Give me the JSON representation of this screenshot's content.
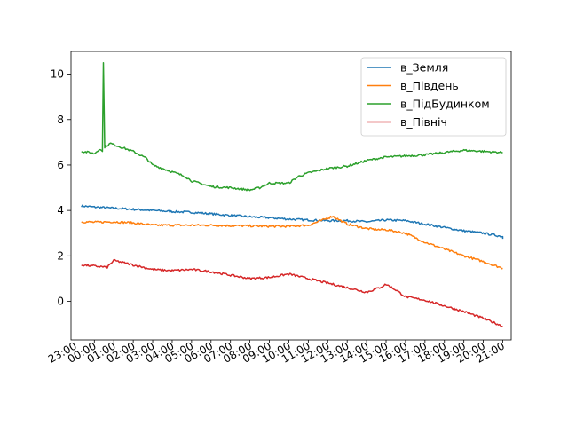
{
  "chart_data": {
    "type": "line",
    "title": "",
    "xlabel": "",
    "ylabel": "",
    "x_ticks": [
      "23:00",
      "00:00",
      "01:00",
      "02:00",
      "03:00",
      "04:00",
      "05:00",
      "06:00",
      "07:00",
      "08:00",
      "09:00",
      "10:00",
      "11:00",
      "12:00",
      "13:00",
      "14:00",
      "15:00",
      "16:00",
      "17:00",
      "18:00",
      "19:00",
      "20:00",
      "21:00"
    ],
    "y_ticks": [
      0,
      2,
      4,
      6,
      8,
      10
    ],
    "xlim": [
      "22:48",
      "21:26"
    ],
    "ylim": [
      -1.7,
      11.0
    ],
    "grid": false,
    "legend_position": "upper-right",
    "series": [
      {
        "name": "в_Земля",
        "color": "#1f77b4",
        "x": [
          "23:20",
          "00:00",
          "01:00",
          "02:00",
          "03:00",
          "04:00",
          "05:00",
          "06:00",
          "07:00",
          "08:00",
          "09:00",
          "10:00",
          "11:00",
          "12:00",
          "13:00",
          "14:00",
          "15:00",
          "16:00",
          "17:00",
          "18:00",
          "19:00",
          "20:00",
          "21:00",
          "21:00"
        ],
        "y": [
          4.2,
          4.15,
          4.1,
          4.05,
          4.0,
          3.95,
          3.92,
          3.85,
          3.78,
          3.72,
          3.68,
          3.62,
          3.58,
          3.55,
          3.55,
          3.5,
          3.58,
          3.55,
          3.4,
          3.25,
          3.1,
          3.0,
          2.85,
          2.75
        ]
      },
      {
        "name": "в_Південь",
        "color": "#ff7f0e",
        "x": [
          "23:20",
          "00:00",
          "01:00",
          "02:00",
          "03:00",
          "04:00",
          "05:00",
          "06:00",
          "07:00",
          "08:00",
          "09:00",
          "10:00",
          "11:00",
          "11:40",
          "12:15",
          "12:40",
          "13:00",
          "14:00",
          "14:40",
          "15:00",
          "16:00",
          "17:00",
          "18:00",
          "19:00",
          "20:00",
          "21:00"
        ],
        "y": [
          3.5,
          3.48,
          3.5,
          3.45,
          3.35,
          3.35,
          3.35,
          3.35,
          3.33,
          3.32,
          3.3,
          3.3,
          3.35,
          3.55,
          3.75,
          3.55,
          3.4,
          3.2,
          3.15,
          3.15,
          3.0,
          2.6,
          2.3,
          2.0,
          1.75,
          1.45
        ]
      },
      {
        "name": "в_ПідБудинком",
        "color": "#2ca02c",
        "x": [
          "23:20",
          "23:45",
          "00:00",
          "00:15",
          "00:25",
          "00:28",
          "00:32",
          "00:50",
          "01:00",
          "02:00",
          "02:40",
          "03:00",
          "04:00",
          "04:40",
          "05:00",
          "06:00",
          "07:00",
          "08:00",
          "08:30",
          "09:00",
          "10:00",
          "10:30",
          "11:00",
          "12:00",
          "13:00",
          "14:00",
          "15:00",
          "16:00",
          "17:00",
          "18:00",
          "19:00",
          "20:00",
          "21:00"
        ],
        "y": [
          6.6,
          6.55,
          6.5,
          6.7,
          6.6,
          10.5,
          6.8,
          6.95,
          6.9,
          6.6,
          6.3,
          6.0,
          5.7,
          5.5,
          5.3,
          5.05,
          5.0,
          4.9,
          5.0,
          5.2,
          5.2,
          5.5,
          5.65,
          5.85,
          5.95,
          6.2,
          6.35,
          6.4,
          6.45,
          6.55,
          6.65,
          6.6,
          6.55
        ]
      },
      {
        "name": "в_Північ",
        "color": "#d62728",
        "x": [
          "23:20",
          "00:00",
          "00:40",
          "01:00",
          "02:00",
          "03:00",
          "04:00",
          "05:00",
          "06:00",
          "07:00",
          "08:00",
          "09:00",
          "10:00",
          "11:00",
          "12:00",
          "13:00",
          "14:00",
          "14:40",
          "15:00",
          "15:30",
          "16:00",
          "17:00",
          "18:00",
          "19:00",
          "20:00",
          "21:00"
        ],
        "y": [
          1.6,
          1.55,
          1.5,
          1.8,
          1.6,
          1.4,
          1.35,
          1.4,
          1.3,
          1.15,
          1.0,
          1.05,
          1.2,
          1.0,
          0.8,
          0.6,
          0.4,
          0.6,
          0.75,
          0.5,
          0.2,
          0.05,
          -0.2,
          -0.45,
          -0.75,
          -1.1
        ]
      }
    ]
  }
}
